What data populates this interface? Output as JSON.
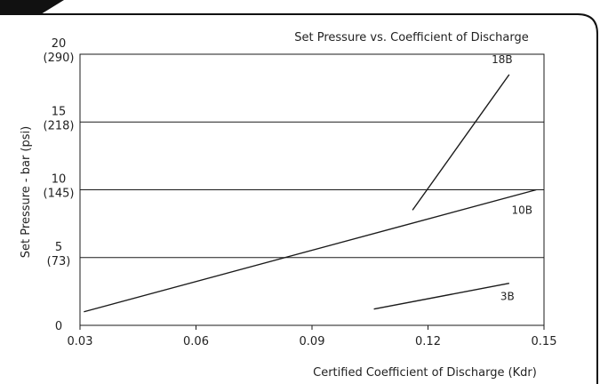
{
  "chart_data": {
    "type": "line",
    "title": "Set Pressure vs. Coefficient of Discharge",
    "xlabel": "Certified Coefficient of Discharge (Kdr)",
    "ylabel": "Set Pressure - bar (psi)",
    "xlim": [
      0.03,
      0.15
    ],
    "ylim": [
      0,
      20
    ],
    "x_ticks": [
      {
        "value": 0.03,
        "label": "0.03"
      },
      {
        "value": 0.06,
        "label": "0.06"
      },
      {
        "value": 0.09,
        "label": "0.09"
      },
      {
        "value": 0.12,
        "label": "0.12"
      },
      {
        "value": 0.15,
        "label": "0.15"
      }
    ],
    "y_ticks": [
      {
        "value": 0,
        "label": "0",
        "sub": ""
      },
      {
        "value": 5,
        "label": "5",
        "sub": "(73)"
      },
      {
        "value": 10,
        "label": "10",
        "sub": "(145)"
      },
      {
        "value": 15,
        "label": "15",
        "sub": "(218)"
      },
      {
        "value": 20,
        "label": "20",
        "sub": "(290)"
      }
    ],
    "grid": "horizontal",
    "series": [
      {
        "name": "3B",
        "x": [
          0.106,
          0.141
        ],
        "y": [
          1.2,
          3.1
        ]
      },
      {
        "name": "10B",
        "x": [
          0.031,
          0.148
        ],
        "y": [
          1.0,
          10.0
        ]
      },
      {
        "name": "18B",
        "x": [
          0.116,
          0.141
        ],
        "y": [
          8.5,
          18.5
        ]
      }
    ]
  },
  "colors": {
    "line": "#1a1a1a",
    "axis": "#1a1a1a",
    "grid": "#1a1a1a",
    "banner": "#111111"
  }
}
